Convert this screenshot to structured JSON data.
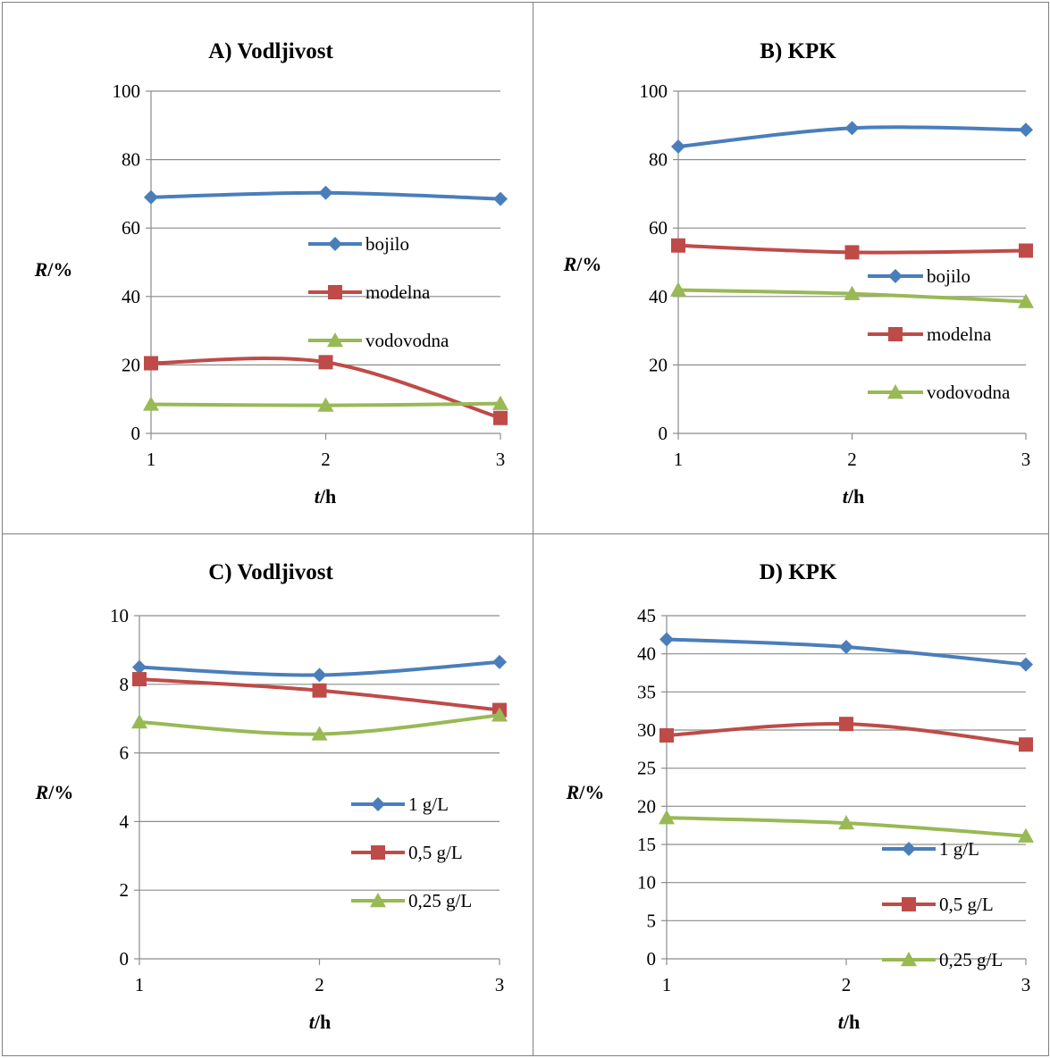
{
  "chart_data": [
    {
      "id": "a",
      "type": "line",
      "title": "A) Vodljivost",
      "xlabel_var": "t",
      "xlabel_unit": "/h",
      "ylabel_var": "R",
      "ylabel_unit": "/%",
      "categories": [
        "1",
        "2",
        "3"
      ],
      "ylim": [
        0,
        100
      ],
      "yticks": [
        0,
        20,
        40,
        60,
        80,
        100
      ],
      "grid": true,
      "legend_position": "center-right",
      "series": [
        {
          "name": "bojilo",
          "values": [
            69.0,
            70.3,
            68.5
          ],
          "color": "#4a7ebb",
          "marker": "diamond"
        },
        {
          "name": "modelna",
          "values": [
            20.5,
            20.8,
            4.5
          ],
          "color": "#be4b48",
          "marker": "square"
        },
        {
          "name": "vodovodna",
          "values": [
            8.5,
            8.2,
            8.7
          ],
          "color": "#98b954",
          "marker": "triangle"
        }
      ]
    },
    {
      "id": "b",
      "type": "line",
      "title": "B) KPK",
      "xlabel_var": "t",
      "xlabel_unit": "/h",
      "ylabel_var": "R",
      "ylabel_unit": "/%",
      "categories": [
        "1",
        "2",
        "3"
      ],
      "ylim": [
        0,
        100
      ],
      "yticks": [
        0,
        20,
        40,
        60,
        80,
        100
      ],
      "grid": true,
      "legend_position": "center-right",
      "series": [
        {
          "name": "bojilo",
          "values": [
            83.8,
            89.2,
            88.7
          ],
          "color": "#4a7ebb",
          "marker": "diamond"
        },
        {
          "name": "modelna",
          "values": [
            54.9,
            52.9,
            53.4
          ],
          "color": "#be4b48",
          "marker": "square"
        },
        {
          "name": "vodovodna",
          "values": [
            41.9,
            40.8,
            38.5
          ],
          "color": "#98b954",
          "marker": "triangle"
        }
      ]
    },
    {
      "id": "c",
      "type": "line",
      "title": "C) Vodljivost",
      "xlabel_var": "t",
      "xlabel_unit": "/h",
      "ylabel_var": "R",
      "ylabel_unit": "/%",
      "categories": [
        "1",
        "2",
        "3"
      ],
      "ylim": [
        0,
        10
      ],
      "yticks": [
        0,
        2,
        4,
        6,
        8,
        10
      ],
      "grid": true,
      "legend_position": "bottom-right",
      "series": [
        {
          "name": "1 g/L",
          "values": [
            8.5,
            8.27,
            8.65
          ],
          "color": "#4a7ebb",
          "marker": "diamond"
        },
        {
          "name": "0,5 g/L",
          "values": [
            8.15,
            7.82,
            7.25
          ],
          "color": "#be4b48",
          "marker": "square"
        },
        {
          "name": "0,25 g/L",
          "values": [
            6.9,
            6.55,
            7.1
          ],
          "color": "#98b954",
          "marker": "triangle"
        }
      ]
    },
    {
      "id": "d",
      "type": "line",
      "title": "D) KPK",
      "xlabel_var": "t",
      "xlabel_unit": "/h",
      "ylabel_var": "R",
      "ylabel_unit": "/%",
      "categories": [
        "1",
        "2",
        "3"
      ],
      "ylim": [
        0,
        45
      ],
      "yticks": [
        0,
        5,
        10,
        15,
        20,
        25,
        30,
        35,
        40,
        45
      ],
      "grid": true,
      "legend_position": "bottom-right",
      "series": [
        {
          "name": "1 g/L",
          "values": [
            41.9,
            40.9,
            38.6
          ],
          "color": "#4a7ebb",
          "marker": "diamond"
        },
        {
          "name": "0,5 g/L",
          "values": [
            29.3,
            30.8,
            28.1
          ],
          "color": "#be4b48",
          "marker": "square"
        },
        {
          "name": "0,25 g/L",
          "values": [
            18.5,
            17.8,
            16.1
          ],
          "color": "#98b954",
          "marker": "triangle"
        }
      ]
    }
  ]
}
